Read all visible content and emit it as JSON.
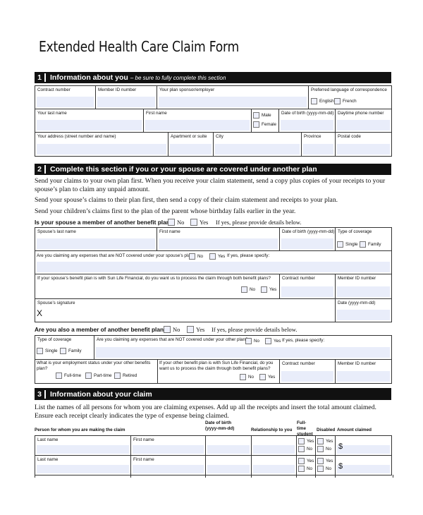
{
  "title": "Extended Health Care Claim Form",
  "s1": {
    "num": "1",
    "title": "Information about you",
    "note": "– be sure to fully complete this section",
    "contract": "Contract number",
    "member_id": "Member ID number",
    "sponsor": "Your plan sponsor/employer",
    "language": "Preferred language of correspondence",
    "english": "English",
    "french": "French",
    "last": "Your last name",
    "first": "First name",
    "male": "Male",
    "female": "Female",
    "dob": "Date of birth (yyyy-mm-dd)",
    "phone": "Daytime phone number",
    "address": "Your address (street number and name)",
    "apt": "Apartment or suite",
    "city": "City",
    "province": "Province",
    "postal": "Postal code"
  },
  "s2": {
    "num": "2",
    "title": "Complete this section if you or your spouse are covered under another plan",
    "p1": "Send your claims to your own plan first. When you receive your claim statement, send a copy plus copies of your receipts to your spouse’s plan to claim any unpaid amount.",
    "p2": "Send your spouse’s claims to their plan first, then send a copy of their claim statement and receipts to your plan.",
    "p3": "Send your children’s claims first to the plan of the parent whose birthday falls earlier in the year.",
    "q_spouse": "Is your spouse a member of another benefit plan?",
    "no": "No",
    "yes": "Yes",
    "details": "If yes, please provide details below.",
    "sp_last": "Spouse’s last name",
    "sp_first": "First name",
    "sp_dob": "Date of birth (yyyy-mm-dd)",
    "coverage": "Type of coverage",
    "single": "Single",
    "family": "Family",
    "not_covered_sp": "Are you claiming any expenses that are NOT covered under your spouse’s plan?",
    "specify": "If yes, please specify:",
    "sunlife_sp": "If your spouse’s benefit plan is with Sun Life Financial, do you want us to process the claim through both benefit plans?",
    "contract": "Contract number",
    "member_id": "Member ID number",
    "sp_sig": "Spouse’s signature",
    "sig_x": "X",
    "date": "Date (yyyy-mm-dd)",
    "q_you": "Are you also a member of another benefit plan?",
    "not_covered_other": "Are you claiming any expenses that are NOT covered under your other plan?",
    "employment": "What is your employment status under your other benefits plan?",
    "fulltime": "Full-time",
    "parttime": "Part-time",
    "retired": "Retired",
    "sunlife_other": "If your other benefit plan is with Sun Life Financial, do you want us to process the claim through both benefit plans?"
  },
  "s3": {
    "num": "3",
    "title": "Information about your claim",
    "p": "List the names of all persons for whom you are claiming expenses. Add up all the receipts and insert the total amount claimed. Ensure each receipt clearly indicates the type of expense being claimed.",
    "h_person": "Person for whom you are making the claim",
    "h_dob": "Date of birth (yyyy-mm-dd)",
    "h_rel": "Relationship to you",
    "h_student": "Full-time student",
    "h_disabled": "Disabled",
    "h_amount": "Amount claimed",
    "last": "Last name",
    "first": "First name",
    "yes": "Yes",
    "no": "No",
    "dollar": "$"
  }
}
